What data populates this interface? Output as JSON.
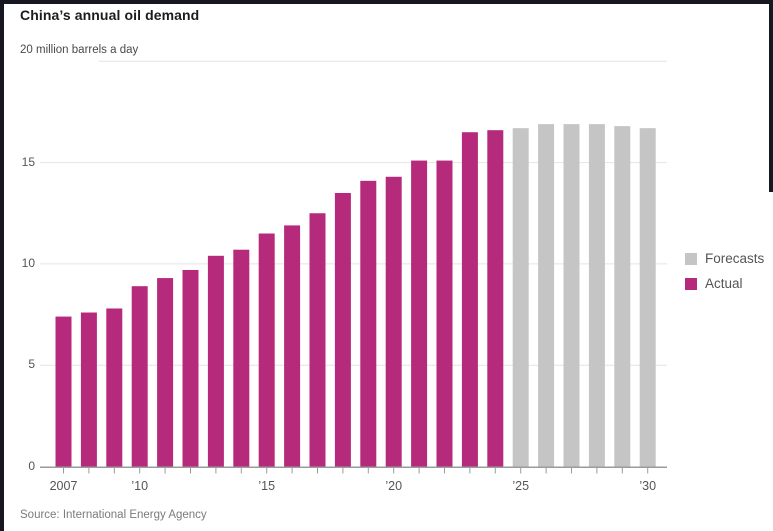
{
  "window": {
    "frame_color": "#171722"
  },
  "chart_data": {
    "type": "bar",
    "title": "China’s annual oil demand",
    "source": "Source: International Energy Agency",
    "ylim": [
      0,
      20
    ],
    "grid": "horizontal",
    "legend_position": "right",
    "y_axis": {
      "max": 20,
      "top_label": "20 million barrels a day",
      "ticks": [
        {
          "value": 15,
          "label": "15"
        },
        {
          "value": 10,
          "label": "10"
        },
        {
          "value": 5,
          "label": "5"
        },
        {
          "value": 0,
          "label": "0"
        }
      ]
    },
    "x_axis": {
      "ticks": [
        {
          "year": 2007,
          "label": "2007"
        },
        {
          "year": 2010,
          "label": "’10"
        },
        {
          "year": 2015,
          "label": "’15"
        },
        {
          "year": 2020,
          "label": "’20"
        },
        {
          "year": 2025,
          "label": "’25"
        },
        {
          "year": 2030,
          "label": "’30"
        }
      ]
    },
    "legend": [
      {
        "label": "Forecasts",
        "series": "forecast"
      },
      {
        "label": "Actual",
        "series": "actual"
      }
    ],
    "colors": {
      "actual": "#b62a7c",
      "forecast": "#c5c5c5",
      "gridline": "#e4e4e4",
      "axis": "#9b9b9b"
    },
    "bars": [
      {
        "year": 2007,
        "value": 7.4,
        "series": "actual"
      },
      {
        "year": 2008,
        "value": 7.6,
        "series": "actual"
      },
      {
        "year": 2009,
        "value": 7.8,
        "series": "actual"
      },
      {
        "year": 2010,
        "value": 8.9,
        "series": "actual"
      },
      {
        "year": 2011,
        "value": 9.3,
        "series": "actual"
      },
      {
        "year": 2012,
        "value": 9.7,
        "series": "actual"
      },
      {
        "year": 2013,
        "value": 10.4,
        "series": "actual"
      },
      {
        "year": 2014,
        "value": 10.7,
        "series": "actual"
      },
      {
        "year": 2015,
        "value": 11.5,
        "series": "actual"
      },
      {
        "year": 2016,
        "value": 11.9,
        "series": "actual"
      },
      {
        "year": 2017,
        "value": 12.5,
        "series": "actual"
      },
      {
        "year": 2018,
        "value": 13.5,
        "series": "actual"
      },
      {
        "year": 2019,
        "value": 14.1,
        "series": "actual"
      },
      {
        "year": 2020,
        "value": 14.3,
        "series": "actual"
      },
      {
        "year": 2021,
        "value": 15.1,
        "series": "actual"
      },
      {
        "year": 2022,
        "value": 15.1,
        "series": "actual"
      },
      {
        "year": 2023,
        "value": 16.5,
        "series": "actual"
      },
      {
        "year": 2024,
        "value": 16.6,
        "series": "actual"
      },
      {
        "year": 2025,
        "value": 16.7,
        "series": "forecast"
      },
      {
        "year": 2026,
        "value": 16.9,
        "series": "forecast"
      },
      {
        "year": 2027,
        "value": 16.9,
        "series": "forecast"
      },
      {
        "year": 2028,
        "value": 16.9,
        "series": "forecast"
      },
      {
        "year": 2029,
        "value": 16.8,
        "series": "forecast"
      },
      {
        "year": 2030,
        "value": 16.7,
        "series": "forecast"
      }
    ]
  }
}
